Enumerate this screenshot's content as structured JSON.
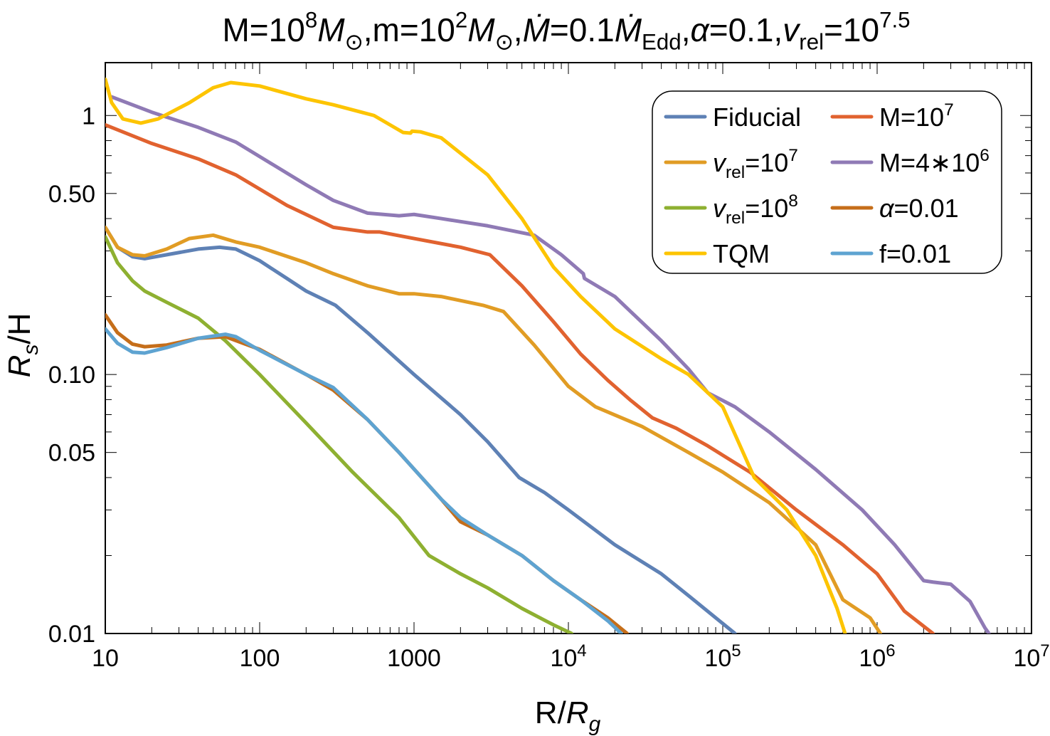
{
  "chart_data": {
    "type": "line",
    "title": {
      "parts": [
        {
          "text": "M=10",
          "style": "normal"
        },
        {
          "text": "8",
          "style": "sup"
        },
        {
          "text": "M",
          "style": "italic"
        },
        {
          "text": "⊙",
          "style": "sub"
        },
        {
          "text": ",m=10",
          "style": "normal"
        },
        {
          "text": "2",
          "style": "sup"
        },
        {
          "text": "M",
          "style": "italic"
        },
        {
          "text": "⊙",
          "style": "sub"
        },
        {
          "text": ",",
          "style": "normal"
        },
        {
          "text": "Ṁ",
          "style": "italic"
        },
        {
          "text": "=0.1",
          "style": "normal"
        },
        {
          "text": "Ṁ",
          "style": "italic"
        },
        {
          "text": "Edd",
          "style": "sub"
        },
        {
          "text": ",",
          "style": "normal"
        },
        {
          "text": "α",
          "style": "italic"
        },
        {
          "text": "=0.1,",
          "style": "normal"
        },
        {
          "text": "v",
          "style": "italic"
        },
        {
          "text": "rel",
          "style": "sub"
        },
        {
          "text": "=10",
          "style": "normal"
        },
        {
          "text": "7.5",
          "style": "sup"
        }
      ]
    },
    "xlabel": {
      "parts": [
        {
          "text": "R/",
          "style": "normal"
        },
        {
          "text": "R",
          "style": "italic"
        },
        {
          "text": "g",
          "style": "italic-sub"
        }
      ]
    },
    "ylabel": {
      "parts": [
        {
          "text": "R",
          "style": "italic"
        },
        {
          "text": "s",
          "style": "italic-sub"
        },
        {
          "text": "/H",
          "style": "normal"
        }
      ]
    },
    "xscale": "log",
    "yscale": "log",
    "xlim": [
      10,
      10000000
    ],
    "ylim": [
      0.01,
      1.6
    ],
    "grid": false,
    "legend_position": "top-right",
    "x_ticks": [
      {
        "value": 10,
        "label": "10"
      },
      {
        "value": 100,
        "label": "100"
      },
      {
        "value": 1000,
        "label": "1000"
      },
      {
        "value": 10000,
        "label": "10",
        "sup": "4"
      },
      {
        "value": 100000,
        "label": "10",
        "sup": "5"
      },
      {
        "value": 1000000,
        "label": "10",
        "sup": "6"
      },
      {
        "value": 10000000,
        "label": "10",
        "sup": "7"
      }
    ],
    "y_ticks": [
      {
        "value": 0.01,
        "label": "0.01"
      },
      {
        "value": 0.05,
        "label": "0.05"
      },
      {
        "value": 0.1,
        "label": "0.10"
      },
      {
        "value": 0.5,
        "label": "0.50"
      },
      {
        "value": 1,
        "label": "1"
      }
    ],
    "series": [
      {
        "key": "fiducial",
        "color": "#5E81B5",
        "legend": [
          {
            "text": "Fiducial",
            "style": "normal"
          }
        ],
        "points": [
          [
            10,
            0.37
          ],
          [
            12,
            0.31
          ],
          [
            15,
            0.285
          ],
          [
            18,
            0.28
          ],
          [
            25,
            0.29
          ],
          [
            40,
            0.305
          ],
          [
            55,
            0.31
          ],
          [
            70,
            0.305
          ],
          [
            100,
            0.275
          ],
          [
            150,
            0.235
          ],
          [
            200,
            0.21
          ],
          [
            310,
            0.185
          ],
          [
            500,
            0.145
          ],
          [
            1000,
            0.1
          ],
          [
            2000,
            0.07
          ],
          [
            3000,
            0.055
          ],
          [
            4800,
            0.04
          ],
          [
            7000,
            0.035
          ],
          [
            10000,
            0.03
          ],
          [
            20000,
            0.022
          ],
          [
            40000,
            0.017
          ],
          [
            60000,
            0.014
          ],
          [
            90000,
            0.0115
          ],
          [
            120000,
            0.01
          ]
        ]
      },
      {
        "key": "m7",
        "color": "#E1622F",
        "legend": [
          {
            "text": "M=10",
            "style": "normal"
          },
          {
            "text": "7",
            "style": "sup"
          }
        ],
        "points": [
          [
            10,
            0.92
          ],
          [
            20,
            0.78
          ],
          [
            40,
            0.68
          ],
          [
            70,
            0.59
          ],
          [
            100,
            0.52
          ],
          [
            150,
            0.45
          ],
          [
            300,
            0.37
          ],
          [
            500,
            0.355
          ],
          [
            600,
            0.355
          ],
          [
            1000,
            0.335
          ],
          [
            2000,
            0.31
          ],
          [
            3100,
            0.29
          ],
          [
            5000,
            0.22
          ],
          [
            8000,
            0.16
          ],
          [
            12000,
            0.12
          ],
          [
            18000,
            0.095
          ],
          [
            25000,
            0.08
          ],
          [
            35000,
            0.068
          ],
          [
            50000,
            0.062
          ],
          [
            80000,
            0.053
          ],
          [
            150000,
            0.042
          ],
          [
            300000,
            0.03
          ],
          [
            600000,
            0.022
          ],
          [
            1000000,
            0.017
          ],
          [
            1500000,
            0.0122
          ],
          [
            2300000,
            0.01
          ]
        ]
      },
      {
        "key": "vrel7",
        "color": "#E19C24",
        "legend": [
          {
            "text": "v",
            "style": "italic"
          },
          {
            "text": "rel",
            "style": "sub"
          },
          {
            "text": "=10",
            "style": "normal"
          },
          {
            "text": "7",
            "style": "sup"
          }
        ],
        "points": [
          [
            10,
            0.37
          ],
          [
            12,
            0.31
          ],
          [
            15,
            0.29
          ],
          [
            18,
            0.287
          ],
          [
            25,
            0.305
          ],
          [
            35,
            0.335
          ],
          [
            50,
            0.345
          ],
          [
            70,
            0.325
          ],
          [
            100,
            0.31
          ],
          [
            200,
            0.27
          ],
          [
            300,
            0.245
          ],
          [
            500,
            0.22
          ],
          [
            800,
            0.205
          ],
          [
            1000,
            0.205
          ],
          [
            1500,
            0.2
          ],
          [
            2800,
            0.185
          ],
          [
            3800,
            0.175
          ],
          [
            6000,
            0.13
          ],
          [
            10000,
            0.09
          ],
          [
            15000,
            0.075
          ],
          [
            30000,
            0.063
          ],
          [
            60000,
            0.05
          ],
          [
            100000,
            0.042
          ],
          [
            200000,
            0.032
          ],
          [
            400000,
            0.022
          ],
          [
            600000,
            0.0135
          ],
          [
            900000,
            0.0115
          ],
          [
            1050000,
            0.01
          ]
        ]
      },
      {
        "key": "m4e6",
        "color": "#8F7AB5",
        "legend": [
          {
            "text": "M=4∗10",
            "style": "normal"
          },
          {
            "text": "6",
            "style": "sup"
          }
        ],
        "points": [
          [
            11,
            1.18
          ],
          [
            20,
            1.03
          ],
          [
            40,
            0.9
          ],
          [
            70,
            0.79
          ],
          [
            120,
            0.65
          ],
          [
            200,
            0.54
          ],
          [
            300,
            0.47
          ],
          [
            500,
            0.42
          ],
          [
            800,
            0.41
          ],
          [
            1000,
            0.415
          ],
          [
            1500,
            0.4
          ],
          [
            3000,
            0.375
          ],
          [
            6000,
            0.345
          ],
          [
            9000,
            0.29
          ],
          [
            12500,
            0.245
          ],
          [
            12700,
            0.235
          ],
          [
            20000,
            0.2
          ],
          [
            40000,
            0.135
          ],
          [
            60000,
            0.105
          ],
          [
            80000,
            0.085
          ],
          [
            120000,
            0.075
          ],
          [
            200000,
            0.06
          ],
          [
            400000,
            0.043
          ],
          [
            800000,
            0.03
          ],
          [
            1300000,
            0.022
          ],
          [
            2000000,
            0.016
          ],
          [
            2300000,
            0.0158
          ],
          [
            3000000,
            0.0155
          ],
          [
            4000000,
            0.0133
          ],
          [
            5000000,
            0.0105
          ],
          [
            5300000,
            0.01
          ]
        ]
      },
      {
        "key": "vrel8",
        "color": "#8EB031",
        "legend": [
          {
            "text": "v",
            "style": "italic"
          },
          {
            "text": "rel",
            "style": "sub"
          },
          {
            "text": "=10",
            "style": "normal"
          },
          {
            "text": "8",
            "style": "sup"
          }
        ],
        "points": [
          [
            10,
            0.34
          ],
          [
            12,
            0.27
          ],
          [
            15,
            0.23
          ],
          [
            18,
            0.21
          ],
          [
            25,
            0.19
          ],
          [
            40,
            0.165
          ],
          [
            60,
            0.135
          ],
          [
            100,
            0.1
          ],
          [
            200,
            0.065
          ],
          [
            400,
            0.042
          ],
          [
            800,
            0.028
          ],
          [
            1250,
            0.02
          ],
          [
            2000,
            0.017
          ],
          [
            3000,
            0.015
          ],
          [
            5000,
            0.0125
          ],
          [
            8000,
            0.0108
          ],
          [
            10500,
            0.01
          ]
        ]
      },
      {
        "key": "alpha001",
        "color": "#C56E1A",
        "legend": [
          {
            "text": "α",
            "style": "italic"
          },
          {
            "text": "=0.01",
            "style": "normal"
          }
        ],
        "points": [
          [
            10,
            0.17
          ],
          [
            12,
            0.145
          ],
          [
            15,
            0.131
          ],
          [
            18,
            0.128
          ],
          [
            25,
            0.13
          ],
          [
            40,
            0.138
          ],
          [
            60,
            0.14
          ],
          [
            100,
            0.125
          ],
          [
            200,
            0.1
          ],
          [
            300,
            0.087
          ],
          [
            500,
            0.067
          ],
          [
            800,
            0.05
          ],
          [
            1500,
            0.033
          ],
          [
            2000,
            0.027
          ],
          [
            3000,
            0.024
          ],
          [
            5000,
            0.02
          ],
          [
            8000,
            0.016
          ],
          [
            12000,
            0.0135
          ],
          [
            18000,
            0.0115
          ],
          [
            24000,
            0.01
          ]
        ]
      },
      {
        "key": "tqm",
        "color": "#FDC400",
        "legend": [
          {
            "text": "TQM",
            "style": "normal"
          }
        ],
        "points": [
          [
            10,
            1.38
          ],
          [
            11,
            1.12
          ],
          [
            13,
            0.97
          ],
          [
            17,
            0.935
          ],
          [
            22,
            0.97
          ],
          [
            35,
            1.12
          ],
          [
            50,
            1.28
          ],
          [
            65,
            1.34
          ],
          [
            100,
            1.3
          ],
          [
            200,
            1.16
          ],
          [
            300,
            1.1
          ],
          [
            550,
            1.0
          ],
          [
            850,
            0.86
          ],
          [
            950,
            0.855
          ],
          [
            970,
            0.87
          ],
          [
            1100,
            0.865
          ],
          [
            1500,
            0.82
          ],
          [
            3000,
            0.59
          ],
          [
            5000,
            0.4
          ],
          [
            8000,
            0.26
          ],
          [
            12000,
            0.2
          ],
          [
            20000,
            0.15
          ],
          [
            40000,
            0.115
          ],
          [
            60000,
            0.1
          ],
          [
            100000,
            0.075
          ],
          [
            160000,
            0.04
          ],
          [
            260000,
            0.03
          ],
          [
            400000,
            0.02
          ],
          [
            550000,
            0.0125
          ],
          [
            620000,
            0.01
          ]
        ]
      },
      {
        "key": "f001",
        "color": "#5EA3D1",
        "legend": [
          {
            "text": "f=0.01",
            "style": "normal"
          }
        ],
        "points": [
          [
            10,
            0.15
          ],
          [
            12,
            0.132
          ],
          [
            15,
            0.122
          ],
          [
            18,
            0.121
          ],
          [
            25,
            0.127
          ],
          [
            40,
            0.138
          ],
          [
            60,
            0.143
          ],
          [
            70,
            0.14
          ],
          [
            100,
            0.124
          ],
          [
            200,
            0.1
          ],
          [
            300,
            0.089
          ],
          [
            500,
            0.067
          ],
          [
            800,
            0.05
          ],
          [
            1500,
            0.033
          ],
          [
            2000,
            0.028
          ],
          [
            3000,
            0.024
          ],
          [
            5000,
            0.02
          ],
          [
            8000,
            0.016
          ],
          [
            12000,
            0.0135
          ],
          [
            18000,
            0.0112
          ],
          [
            22000,
            0.01
          ]
        ]
      }
    ]
  }
}
